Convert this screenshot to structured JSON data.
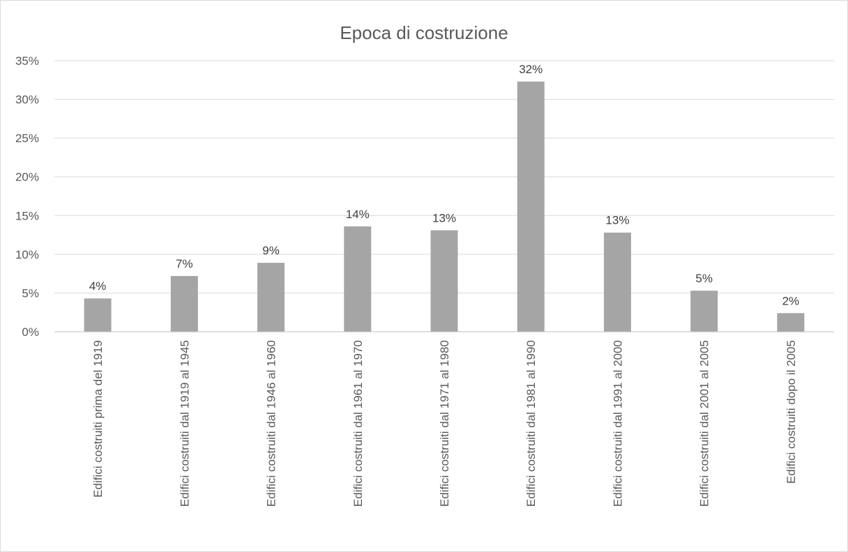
{
  "chart_data": {
    "type": "bar",
    "title": "Epoca di costruzione",
    "xlabel": "",
    "ylabel": "",
    "categories": [
      "Edifici costruiti prima del 1919",
      "Edifici costruiti dal 1919 al 1945",
      "Edifici costruiti dal 1946 al 1960",
      "Edifici costruiti dal 1961 al 1970",
      "Edifici costruiti dal 1971 al 1980",
      "Edifici costruiti dal 1981 al 1990",
      "Edifici costruiti dal 1991 al 2000",
      "Edifici costruiti dal 2001 al 2005",
      "Edifici costruiti dopo il 2005"
    ],
    "values": [
      4.3,
      7.2,
      8.9,
      13.6,
      13.1,
      32.3,
      12.8,
      5.3,
      2.4
    ],
    "data_labels": [
      "4%",
      "7%",
      "9%",
      "14%",
      "13%",
      "32%",
      "13%",
      "5%",
      "2%"
    ],
    "ylim": [
      0,
      35
    ],
    "yticks": [
      0,
      5,
      10,
      15,
      20,
      25,
      30,
      35
    ],
    "ytick_labels": [
      "0%",
      "5%",
      "10%",
      "15%",
      "20%",
      "25%",
      "30%",
      "35%"
    ],
    "grid": true,
    "legend": "none",
    "colors": {
      "bar": "#a5a5a5",
      "grid": "#d9d9d9",
      "axis": "#bfbfbf"
    }
  }
}
